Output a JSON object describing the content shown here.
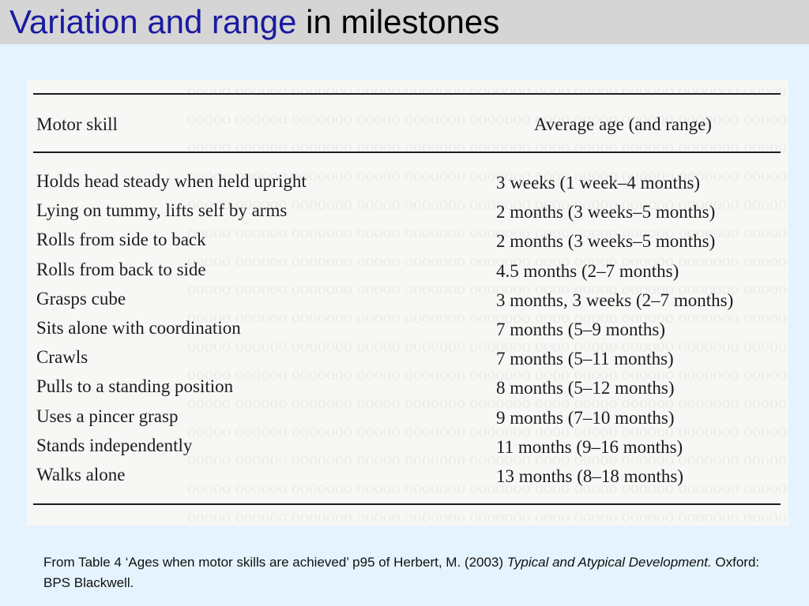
{
  "slide": {
    "title_accent": "Variation and range",
    "title_rest": "in milestones"
  },
  "table": {
    "headers": {
      "skill": "Motor skill",
      "age": "Average age (and range)"
    },
    "rows": [
      {
        "skill": "Holds head steady when held upright",
        "age": "3 weeks (1 week–4 months)"
      },
      {
        "skill": "Lying on tummy, lifts self by arms",
        "age": "2 months (3 weeks–5 months)"
      },
      {
        "skill": "Rolls from side to back",
        "age": "2 months (3 weeks–5 months)"
      },
      {
        "skill": "Rolls from back to side",
        "age": "4.5 months (2–7 months)"
      },
      {
        "skill": "Grasps cube",
        "age": "3 months, 3 weeks (2–7 months)"
      },
      {
        "skill": "Sits alone with coordination",
        "age": "7 months (5–9 months)"
      },
      {
        "skill": "Crawls",
        "age": "7 months (5–11 months)"
      },
      {
        "skill": "Pulls to a standing position",
        "age": "8 months (5–12 months)"
      },
      {
        "skill": "Uses a pincer grasp",
        "age": "9 months (7–10 months)"
      },
      {
        "skill": "Stands independently",
        "age": "11 months (9–16 months)"
      },
      {
        "skill": "Walks alone",
        "age": "13 months (8–18 months)"
      }
    ]
  },
  "citation": {
    "prefix": "From Table 4 ‘Ages when motor skills are achieved’ p95 of Herbert, M. (2003) ",
    "book_title": "Typical and Atypical Development.",
    "suffix": " Oxford: BPS Blackwell."
  },
  "colors": {
    "title_accent": "#1a1aa0",
    "background": "#e4f3fe",
    "title_bar": "#d5d5d5"
  }
}
